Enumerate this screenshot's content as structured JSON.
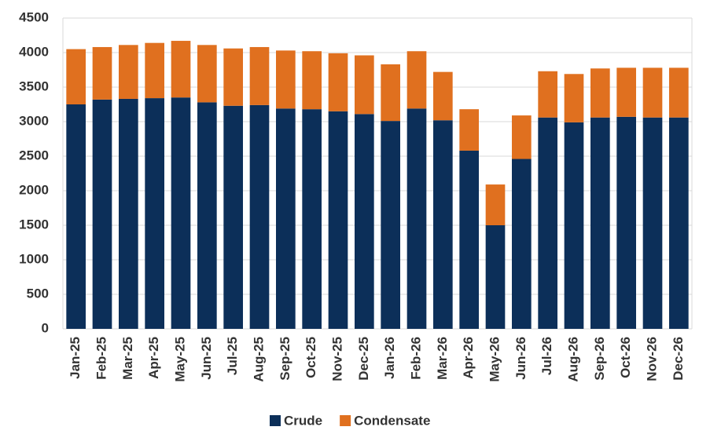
{
  "chart_data": {
    "type": "stacked_bar",
    "categories": [
      "Jan-25",
      "Feb-25",
      "Mar-25",
      "Apr-25",
      "May-25",
      "Jun-25",
      "Jul-25",
      "Aug-25",
      "Sep-25",
      "Oct-25",
      "Nov-25",
      "Dec-25",
      "Jan-26",
      "Feb-26",
      "Mar-26",
      "Apr-26",
      "May-26",
      "Jun-26",
      "Jul-26",
      "Aug-26",
      "Sep-26",
      "Oct-26",
      "Nov-26",
      "Dec-26"
    ],
    "series": [
      {
        "name": "Crude",
        "color": "#0c2f59",
        "values": [
          3250,
          3320,
          3330,
          3340,
          3350,
          3280,
          3230,
          3240,
          3190,
          3180,
          3150,
          3110,
          3010,
          3190,
          3020,
          2580,
          1500,
          2460,
          3060,
          2990,
          3060,
          3070,
          3060,
          3060
        ]
      },
      {
        "name": "Condensate",
        "color": "#e0701f",
        "values": [
          800,
          760,
          780,
          800,
          820,
          830,
          830,
          840,
          840,
          840,
          840,
          850,
          820,
          830,
          700,
          600,
          590,
          630,
          670,
          700,
          710,
          710,
          720,
          720
        ]
      }
    ],
    "ylim": [
      0,
      4500
    ],
    "yticks": [
      0,
      500,
      1000,
      1500,
      2000,
      2500,
      3000,
      3500,
      4000,
      4500
    ],
    "grid": true,
    "legend": "bottom"
  }
}
